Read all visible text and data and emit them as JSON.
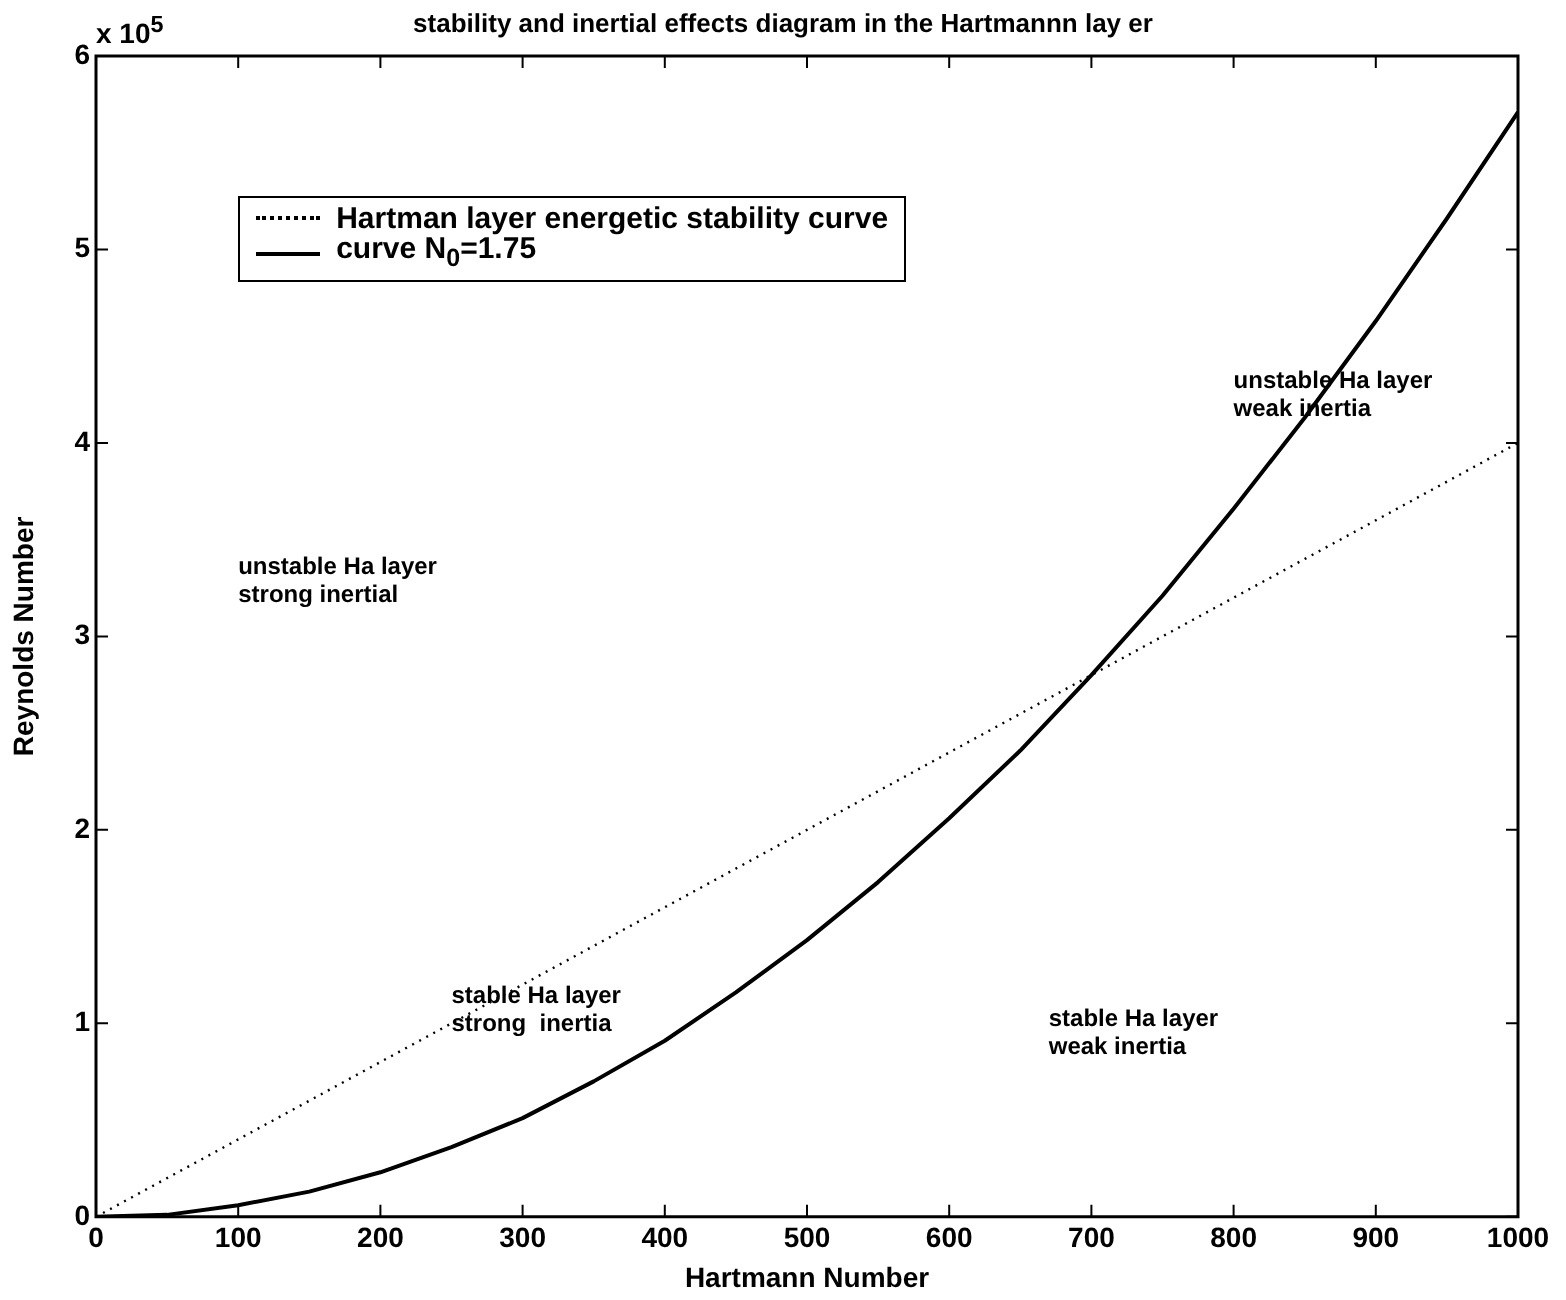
{
  "chart_data": {
    "type": "line",
    "title": "stability and inertial effects diagram in the Hartmannn lay er",
    "xlabel": "Hartmann Number",
    "ylabel": "Reynolds Number",
    "series": [
      {
        "name": "Hartman layer energetic stability curve",
        "color": "#000000",
        "line_style": "dotted",
        "x": [
          0,
          1000
        ],
        "values": [
          0,
          4
        ]
      },
      {
        "name": "curve N$_{0}$=1.75",
        "color": "#000000",
        "line_style": "solid",
        "x": [
          0,
          50,
          100,
          150,
          200,
          250,
          300,
          350,
          400,
          450,
          500,
          550,
          600,
          650,
          700,
          750,
          800,
          850,
          900,
          950,
          1000
        ],
        "values": [
          0,
          0.01,
          0.06,
          0.13,
          0.23,
          0.36,
          0.51,
          0.7,
          0.91,
          1.16,
          1.43,
          1.73,
          2.06,
          2.41,
          2.8,
          3.21,
          3.66,
          4.13,
          4.63,
          5.16,
          5.71
        ]
      }
    ],
    "xlim": [
      0,
      1000
    ],
    "xticks": [
      0,
      100,
      200,
      300,
      400,
      500,
      600,
      700,
      800,
      900,
      1000
    ],
    "ylim": [
      0,
      6
    ],
    "yticks": [
      0,
      1,
      2,
      3,
      4,
      5,
      6
    ],
    "legend": "top left",
    "marker": "none",
    "grid": false,
    "annotations": [
      "x 10$^{5}$",
      "unstable Ha layer\nstrong inertial",
      "stable Ha layer\nstrong  inertia",
      "unstable Ha layer\nweak inertia",
      "stable Ha layer\nweak inertia"
    ]
  }
}
